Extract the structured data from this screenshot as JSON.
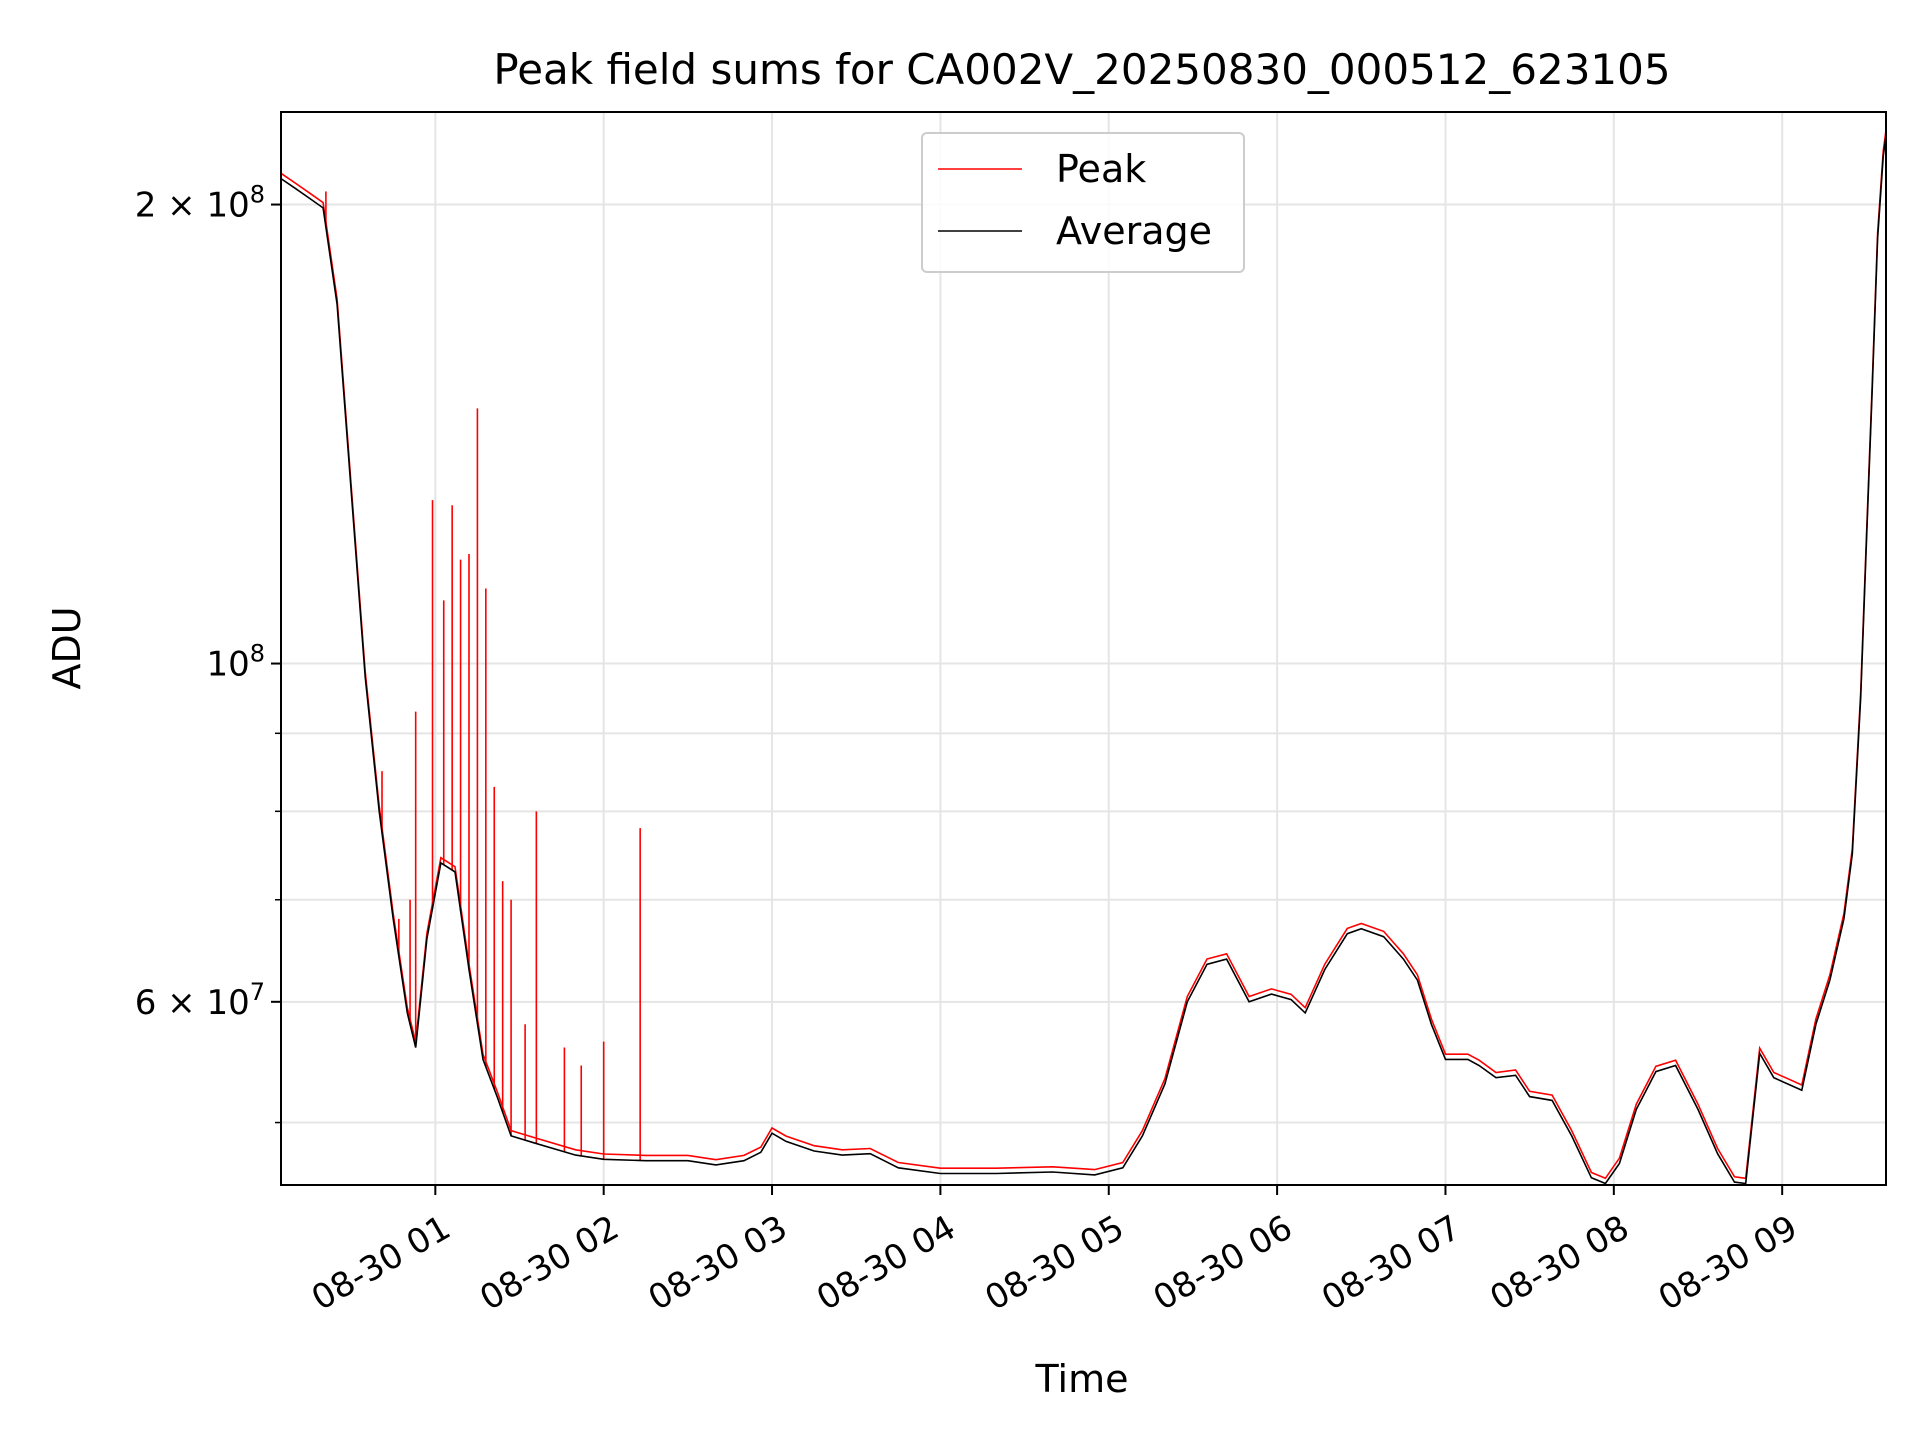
{
  "chart_data": {
    "type": "line",
    "title": "Peak field sums for CA002V_20250830_000512_623105",
    "xlabel": "Time",
    "ylabel": "ADU",
    "x_axis": "datetime",
    "y_scale": "log",
    "xlim": [
      "2025-08-30 00:05",
      "2025-08-30 09:37"
    ],
    "ylim": [
      45500000,
      230000000
    ],
    "grid": true,
    "legend_position": "top-center",
    "x_ticks": [
      {
        "x": "2025-08-30 01:00",
        "label": "08-30 01"
      },
      {
        "x": "2025-08-30 02:00",
        "label": "08-30 02"
      },
      {
        "x": "2025-08-30 03:00",
        "label": "08-30 03"
      },
      {
        "x": "2025-08-30 04:00",
        "label": "08-30 04"
      },
      {
        "x": "2025-08-30 05:00",
        "label": "08-30 05"
      },
      {
        "x": "2025-08-30 06:00",
        "label": "08-30 06"
      },
      {
        "x": "2025-08-30 07:00",
        "label": "08-30 07"
      },
      {
        "x": "2025-08-30 08:00",
        "label": "08-30 08"
      },
      {
        "x": "2025-08-30 09:00",
        "label": "08-30 09"
      }
    ],
    "y_ticks": [
      {
        "value": 200000000,
        "mantissa": "2",
        "exp": "8"
      },
      {
        "value": 100000000,
        "mantissa": "",
        "exp": "8"
      },
      {
        "value": 60000000,
        "mantissa": "6",
        "exp": "7"
      }
    ],
    "y_minor_ticks": [
      50000000,
      70000000,
      80000000,
      90000000
    ],
    "series": [
      {
        "name": "Average",
        "color": "#000000",
        "points": [
          [
            "2025-08-30 00:05",
            208000000
          ],
          [
            "2025-08-30 00:10",
            205000000
          ],
          [
            "2025-08-30 00:15",
            202000000
          ],
          [
            "2025-08-30 00:20",
            199000000
          ],
          [
            "2025-08-30 00:25",
            172000000
          ],
          [
            "2025-08-30 00:30",
            130000000
          ],
          [
            "2025-08-30 00:35",
            98000000
          ],
          [
            "2025-08-30 00:40",
            80000000
          ],
          [
            "2025-08-30 00:45",
            68000000
          ],
          [
            "2025-08-30 00:50",
            59000000
          ],
          [
            "2025-08-30 00:53",
            56000000
          ],
          [
            "2025-08-30 00:57",
            66000000
          ],
          [
            "2025-08-30 01:02",
            74000000
          ],
          [
            "2025-08-30 01:07",
            73000000
          ],
          [
            "2025-08-30 01:12",
            63000000
          ],
          [
            "2025-08-30 01:17",
            55000000
          ],
          [
            "2025-08-30 01:22",
            52000000
          ],
          [
            "2025-08-30 01:27",
            49000000
          ],
          [
            "2025-08-30 01:35",
            48500000
          ],
          [
            "2025-08-30 01:50",
            47600000
          ],
          [
            "2025-08-30 02:00",
            47300000
          ],
          [
            "2025-08-30 02:15",
            47200000
          ],
          [
            "2025-08-30 02:30",
            47200000
          ],
          [
            "2025-08-30 02:40",
            46900000
          ],
          [
            "2025-08-30 02:50",
            47200000
          ],
          [
            "2025-08-30 02:56",
            47800000
          ],
          [
            "2025-08-30 03:00",
            49200000
          ],
          [
            "2025-08-30 03:05",
            48600000
          ],
          [
            "2025-08-30 03:15",
            47900000
          ],
          [
            "2025-08-30 03:25",
            47600000
          ],
          [
            "2025-08-30 03:35",
            47700000
          ],
          [
            "2025-08-30 03:45",
            46700000
          ],
          [
            "2025-08-30 04:00",
            46300000
          ],
          [
            "2025-08-30 04:20",
            46300000
          ],
          [
            "2025-08-30 04:40",
            46400000
          ],
          [
            "2025-08-30 04:55",
            46200000
          ],
          [
            "2025-08-30 05:05",
            46700000
          ],
          [
            "2025-08-30 05:12",
            49000000
          ],
          [
            "2025-08-30 05:20",
            53000000
          ],
          [
            "2025-08-30 05:28",
            60000000
          ],
          [
            "2025-08-30 05:35",
            63500000
          ],
          [
            "2025-08-30 05:42",
            64000000
          ],
          [
            "2025-08-30 05:50",
            60000000
          ],
          [
            "2025-08-30 05:58",
            60700000
          ],
          [
            "2025-08-30 06:05",
            60200000
          ],
          [
            "2025-08-30 06:10",
            59000000
          ],
          [
            "2025-08-30 06:17",
            63000000
          ],
          [
            "2025-08-30 06:25",
            66500000
          ],
          [
            "2025-08-30 06:30",
            67000000
          ],
          [
            "2025-08-30 06:38",
            66200000
          ],
          [
            "2025-08-30 06:45",
            64000000
          ],
          [
            "2025-08-30 06:50",
            62000000
          ],
          [
            "2025-08-30 06:55",
            58000000
          ],
          [
            "2025-08-30 07:00",
            55000000
          ],
          [
            "2025-08-30 07:08",
            55000000
          ],
          [
            "2025-08-30 07:12",
            54500000
          ],
          [
            "2025-08-30 07:18",
            53500000
          ],
          [
            "2025-08-30 07:25",
            53700000
          ],
          [
            "2025-08-30 07:30",
            52000000
          ],
          [
            "2025-08-30 07:38",
            51700000
          ],
          [
            "2025-08-30 07:45",
            49000000
          ],
          [
            "2025-08-30 07:52",
            46000000
          ],
          [
            "2025-08-30 07:57",
            45600000
          ],
          [
            "2025-08-30 08:02",
            47000000
          ],
          [
            "2025-08-30 08:08",
            51000000
          ],
          [
            "2025-08-30 08:15",
            54000000
          ],
          [
            "2025-08-30 08:22",
            54500000
          ],
          [
            "2025-08-30 08:30",
            51000000
          ],
          [
            "2025-08-30 08:37",
            47700000
          ],
          [
            "2025-08-30 08:43",
            45700000
          ],
          [
            "2025-08-30 08:47",
            45600000
          ],
          [
            "2025-08-30 08:52",
            55500000
          ],
          [
            "2025-08-30 08:57",
            53500000
          ],
          [
            "2025-08-30 09:02",
            53000000
          ],
          [
            "2025-08-30 09:07",
            52500000
          ],
          [
            "2025-08-30 09:12",
            58000000
          ],
          [
            "2025-08-30 09:17",
            62000000
          ],
          [
            "2025-08-30 09:22",
            68000000
          ],
          [
            "2025-08-30 09:25",
            75000000
          ],
          [
            "2025-08-30 09:28",
            95000000
          ],
          [
            "2025-08-30 09:30",
            120000000
          ],
          [
            "2025-08-30 09:32",
            150000000
          ],
          [
            "2025-08-30 09:34",
            190000000
          ],
          [
            "2025-08-30 09:36",
            215000000
          ],
          [
            "2025-08-30 09:37",
            222000000
          ]
        ]
      },
      {
        "name": "Peak",
        "color": "#ff0000",
        "spikes": [
          [
            "2025-08-30 00:21",
            204000000
          ],
          [
            "2025-08-30 00:41",
            85000000
          ],
          [
            "2025-08-30 00:47",
            68000000
          ],
          [
            "2025-08-30 00:51",
            70000000
          ],
          [
            "2025-08-30 00:53",
            93000000
          ],
          [
            "2025-08-30 00:59",
            128000000
          ],
          [
            "2025-08-30 01:03",
            110000000
          ],
          [
            "2025-08-30 01:06",
            127000000
          ],
          [
            "2025-08-30 01:09",
            117000000
          ],
          [
            "2025-08-30 01:12",
            118000000
          ],
          [
            "2025-08-30 01:15",
            147000000
          ],
          [
            "2025-08-30 01:18",
            112000000
          ],
          [
            "2025-08-30 01:21",
            83000000
          ],
          [
            "2025-08-30 01:24",
            72000000
          ],
          [
            "2025-08-30 01:27",
            70000000
          ],
          [
            "2025-08-30 01:32",
            58000000
          ],
          [
            "2025-08-30 01:36",
            80000000
          ],
          [
            "2025-08-30 01:46",
            56000000
          ],
          [
            "2025-08-30 01:52",
            54500000
          ],
          [
            "2025-08-30 02:00",
            56500000
          ],
          [
            "2025-08-30 02:13",
            78000000
          ]
        ]
      }
    ]
  }
}
